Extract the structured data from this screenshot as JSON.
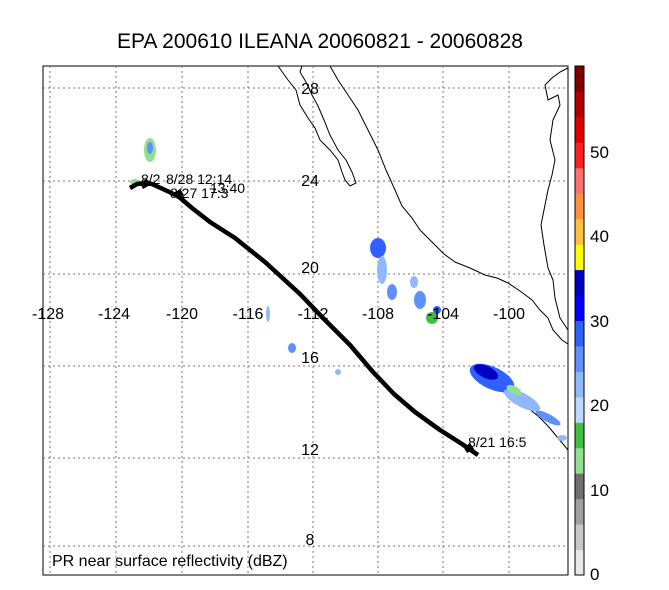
{
  "title": "EPA 200610 ILEANA 20060821 - 20060828",
  "footer_label": "PR near surface reflectivity (dBZ)",
  "lon_labels": [
    "-128",
    "-124",
    "-120",
    "-116",
    "-112",
    "-108",
    "-104",
    "-100"
  ],
  "lat_labels": [
    "28",
    "24",
    "20",
    "16",
    "12",
    "8"
  ],
  "track_labels": [
    "8/21 16:5",
    "8/27 17:3",
    "8/2",
    "8/28 12:14",
    "13:40"
  ],
  "colorbar": {
    "tick_labels": [
      "50",
      "40",
      "30",
      "20",
      "10",
      "0"
    ],
    "colors": [
      "#800000",
      "#b00000",
      "#e00000",
      "#ff2020",
      "#ff7070",
      "#ff9040",
      "#ffc040",
      "#ffff00",
      "#0000c0",
      "#0000ff",
      "#3060ff",
      "#6090ff",
      "#90b8ff",
      "#c0d8ff",
      "#40c040",
      "#90e090",
      "#707070",
      "#a0a0a0",
      "#c8c8c8",
      "#e8e8e8"
    ]
  },
  "track_color": "#000000"
}
